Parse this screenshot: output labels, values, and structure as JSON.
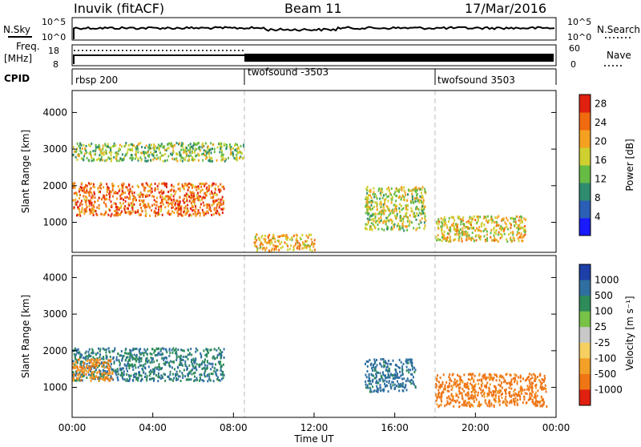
{
  "header": {
    "station": "Inuvik (fitACF)",
    "beam": "Beam 11",
    "date": "17/Mar/2016"
  },
  "top_panels": {
    "nsky_label": "N.Sky",
    "nsearch_label": "N.Search",
    "nsky_ticks": [
      "10^5",
      "10^0"
    ],
    "nsearch_ticks": [
      "10^5",
      "10^0"
    ],
    "freq_label": "Freq.",
    "freq_unit": "[MHz]",
    "freq_ticks": [
      "18",
      "8"
    ],
    "nave_ticks": [
      "60",
      "0"
    ],
    "nave_label": "Nave",
    "cpid_label": "CPID",
    "cpid_segments": [
      {
        "label": "rbsp 200",
        "start_hour": 0
      },
      {
        "label": "twofsound -3503",
        "start_hour": 8.6
      },
      {
        "label": "twofsound 3503",
        "start_hour": 18.0
      }
    ]
  },
  "chart_data": [
    {
      "type": "heatmap",
      "name": "Power",
      "ylabel": "Slant Range [km]",
      "xlabel": "",
      "xlim": [
        "00:00",
        "24:00"
      ],
      "ylim": [
        180,
        4600
      ],
      "yticks": [
        1000,
        2000,
        3000,
        4000
      ],
      "colorbar": {
        "label": "Power [dB]",
        "ticks": [
          4,
          8,
          12,
          16,
          20,
          24,
          28
        ],
        "range": [
          0,
          30
        ],
        "colors": [
          "#1a1aff",
          "#2a5fb5",
          "#2e8b6e",
          "#66bb44",
          "#cfd030",
          "#f4a020",
          "#f06a10",
          "#e02010"
        ]
      },
      "bands": [
        {
          "from_hour": 0.0,
          "to_hour": 7.5,
          "range_km": [
            1200,
            2100
          ],
          "level_db": 24
        },
        {
          "from_hour": 0.0,
          "to_hour": 8.5,
          "range_km": [
            2700,
            3200
          ],
          "level_db": 14
        },
        {
          "from_hour": 9.0,
          "to_hour": 12.0,
          "range_km": [
            250,
            700
          ],
          "level_db": 20
        },
        {
          "from_hour": 14.5,
          "to_hour": 17.5,
          "range_km": [
            800,
            2000
          ],
          "level_db": 16
        },
        {
          "from_hour": 18.0,
          "to_hour": 22.5,
          "range_km": [
            500,
            1200
          ],
          "level_db": 18
        }
      ]
    },
    {
      "type": "heatmap",
      "name": "Velocity",
      "ylabel": "Slant Range [km]",
      "xlabel": "Time UT",
      "xlim": [
        "00:00",
        "24:00"
      ],
      "ylim": [
        180,
        4600
      ],
      "yticks": [
        1000,
        2000,
        3000,
        4000
      ],
      "xticks": [
        "00:00",
        "04:00",
        "08:00",
        "12:00",
        "16:00",
        "20:00",
        "00:00"
      ],
      "colorbar": {
        "label": "Velocity [m s⁻¹]",
        "ticks": [
          "1000",
          "500",
          "100",
          "25",
          "-25",
          "-100",
          "-500",
          "-1000"
        ],
        "colors": [
          "#1c3fa8",
          "#2f6fa0",
          "#2e8b5a",
          "#77c247",
          "#c8c8c8",
          "#f5d060",
          "#f3a028",
          "#ef7515",
          "#e02010"
        ]
      },
      "bands": [
        {
          "from_hour": 0.0,
          "to_hour": 7.5,
          "range_km": [
            1200,
            2100
          ],
          "velocity": 300
        },
        {
          "from_hour": 0.0,
          "to_hour": 2.0,
          "range_km": [
            1200,
            1800
          ],
          "velocity": -300
        },
        {
          "from_hour": 14.5,
          "to_hour": 17.0,
          "range_km": [
            900,
            1800
          ],
          "velocity": 400
        },
        {
          "from_hour": 18.0,
          "to_hour": 23.5,
          "range_km": [
            500,
            1400
          ],
          "velocity": -400
        }
      ]
    }
  ]
}
